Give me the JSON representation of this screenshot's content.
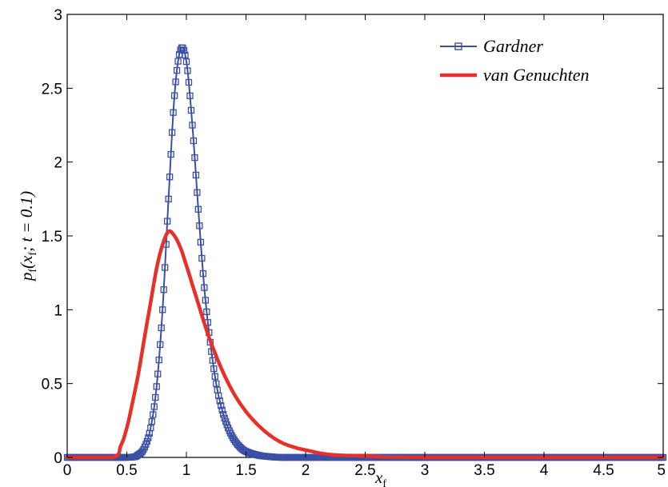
{
  "chart_data": {
    "type": "line",
    "xlabel": "x_f",
    "ylabel": "p_f(x_f; t = 0.1)",
    "xlim": [
      0,
      5
    ],
    "ylim": [
      0,
      3
    ],
    "xticks": [
      0,
      0.5,
      1,
      1.5,
      2,
      2.5,
      3,
      3.5,
      4,
      4.5,
      5
    ],
    "xtick_labels": [
      "0",
      "0.5",
      "1",
      "1.5",
      "2",
      "2.5",
      "3",
      "3.5",
      "4",
      "4.5",
      "5"
    ],
    "yticks": [
      0,
      0.5,
      1,
      1.5,
      2,
      2.5,
      3
    ],
    "ytick_labels": [
      "0",
      "0.5",
      "1",
      "1.5",
      "2",
      "2.5",
      "3"
    ],
    "grid": false,
    "legend_position": "top-right",
    "series": [
      {
        "name": "Gardner",
        "color": "#3a50a5",
        "marker": "square",
        "x": [
          0,
          0.5,
          0.6,
          0.65,
          0.7,
          0.75,
          0.8,
          0.85,
          0.9,
          0.95,
          1.0,
          1.05,
          1.1,
          1.15,
          1.2,
          1.25,
          1.3,
          1.35,
          1.4,
          1.45,
          1.5,
          1.6,
          1.7,
          1.8,
          2.0,
          5.0
        ],
        "y": [
          0.0,
          0.0,
          0.02,
          0.07,
          0.2,
          0.48,
          1.0,
          1.75,
          2.45,
          2.76,
          2.68,
          2.25,
          1.68,
          1.15,
          0.78,
          0.5,
          0.32,
          0.2,
          0.12,
          0.07,
          0.04,
          0.015,
          0.005,
          0.0,
          0.0,
          0.0
        ]
      },
      {
        "name": "van Genuchten",
        "color": "#e8302a",
        "marker": "none",
        "x": [
          0,
          0.38,
          0.45,
          0.5,
          0.55,
          0.6,
          0.65,
          0.7,
          0.75,
          0.8,
          0.85,
          0.9,
          0.95,
          1.0,
          1.05,
          1.1,
          1.15,
          1.2,
          1.3,
          1.4,
          1.5,
          1.6,
          1.7,
          1.8,
          1.9,
          2.0,
          2.2,
          2.5,
          3.0,
          5.0
        ],
        "y": [
          0.0,
          0.0,
          0.08,
          0.2,
          0.38,
          0.58,
          0.82,
          1.05,
          1.28,
          1.44,
          1.53,
          1.5,
          1.42,
          1.3,
          1.17,
          1.04,
          0.91,
          0.79,
          0.59,
          0.43,
          0.31,
          0.22,
          0.15,
          0.1,
          0.07,
          0.05,
          0.02,
          0.01,
          0.0,
          0.0
        ]
      }
    ]
  }
}
